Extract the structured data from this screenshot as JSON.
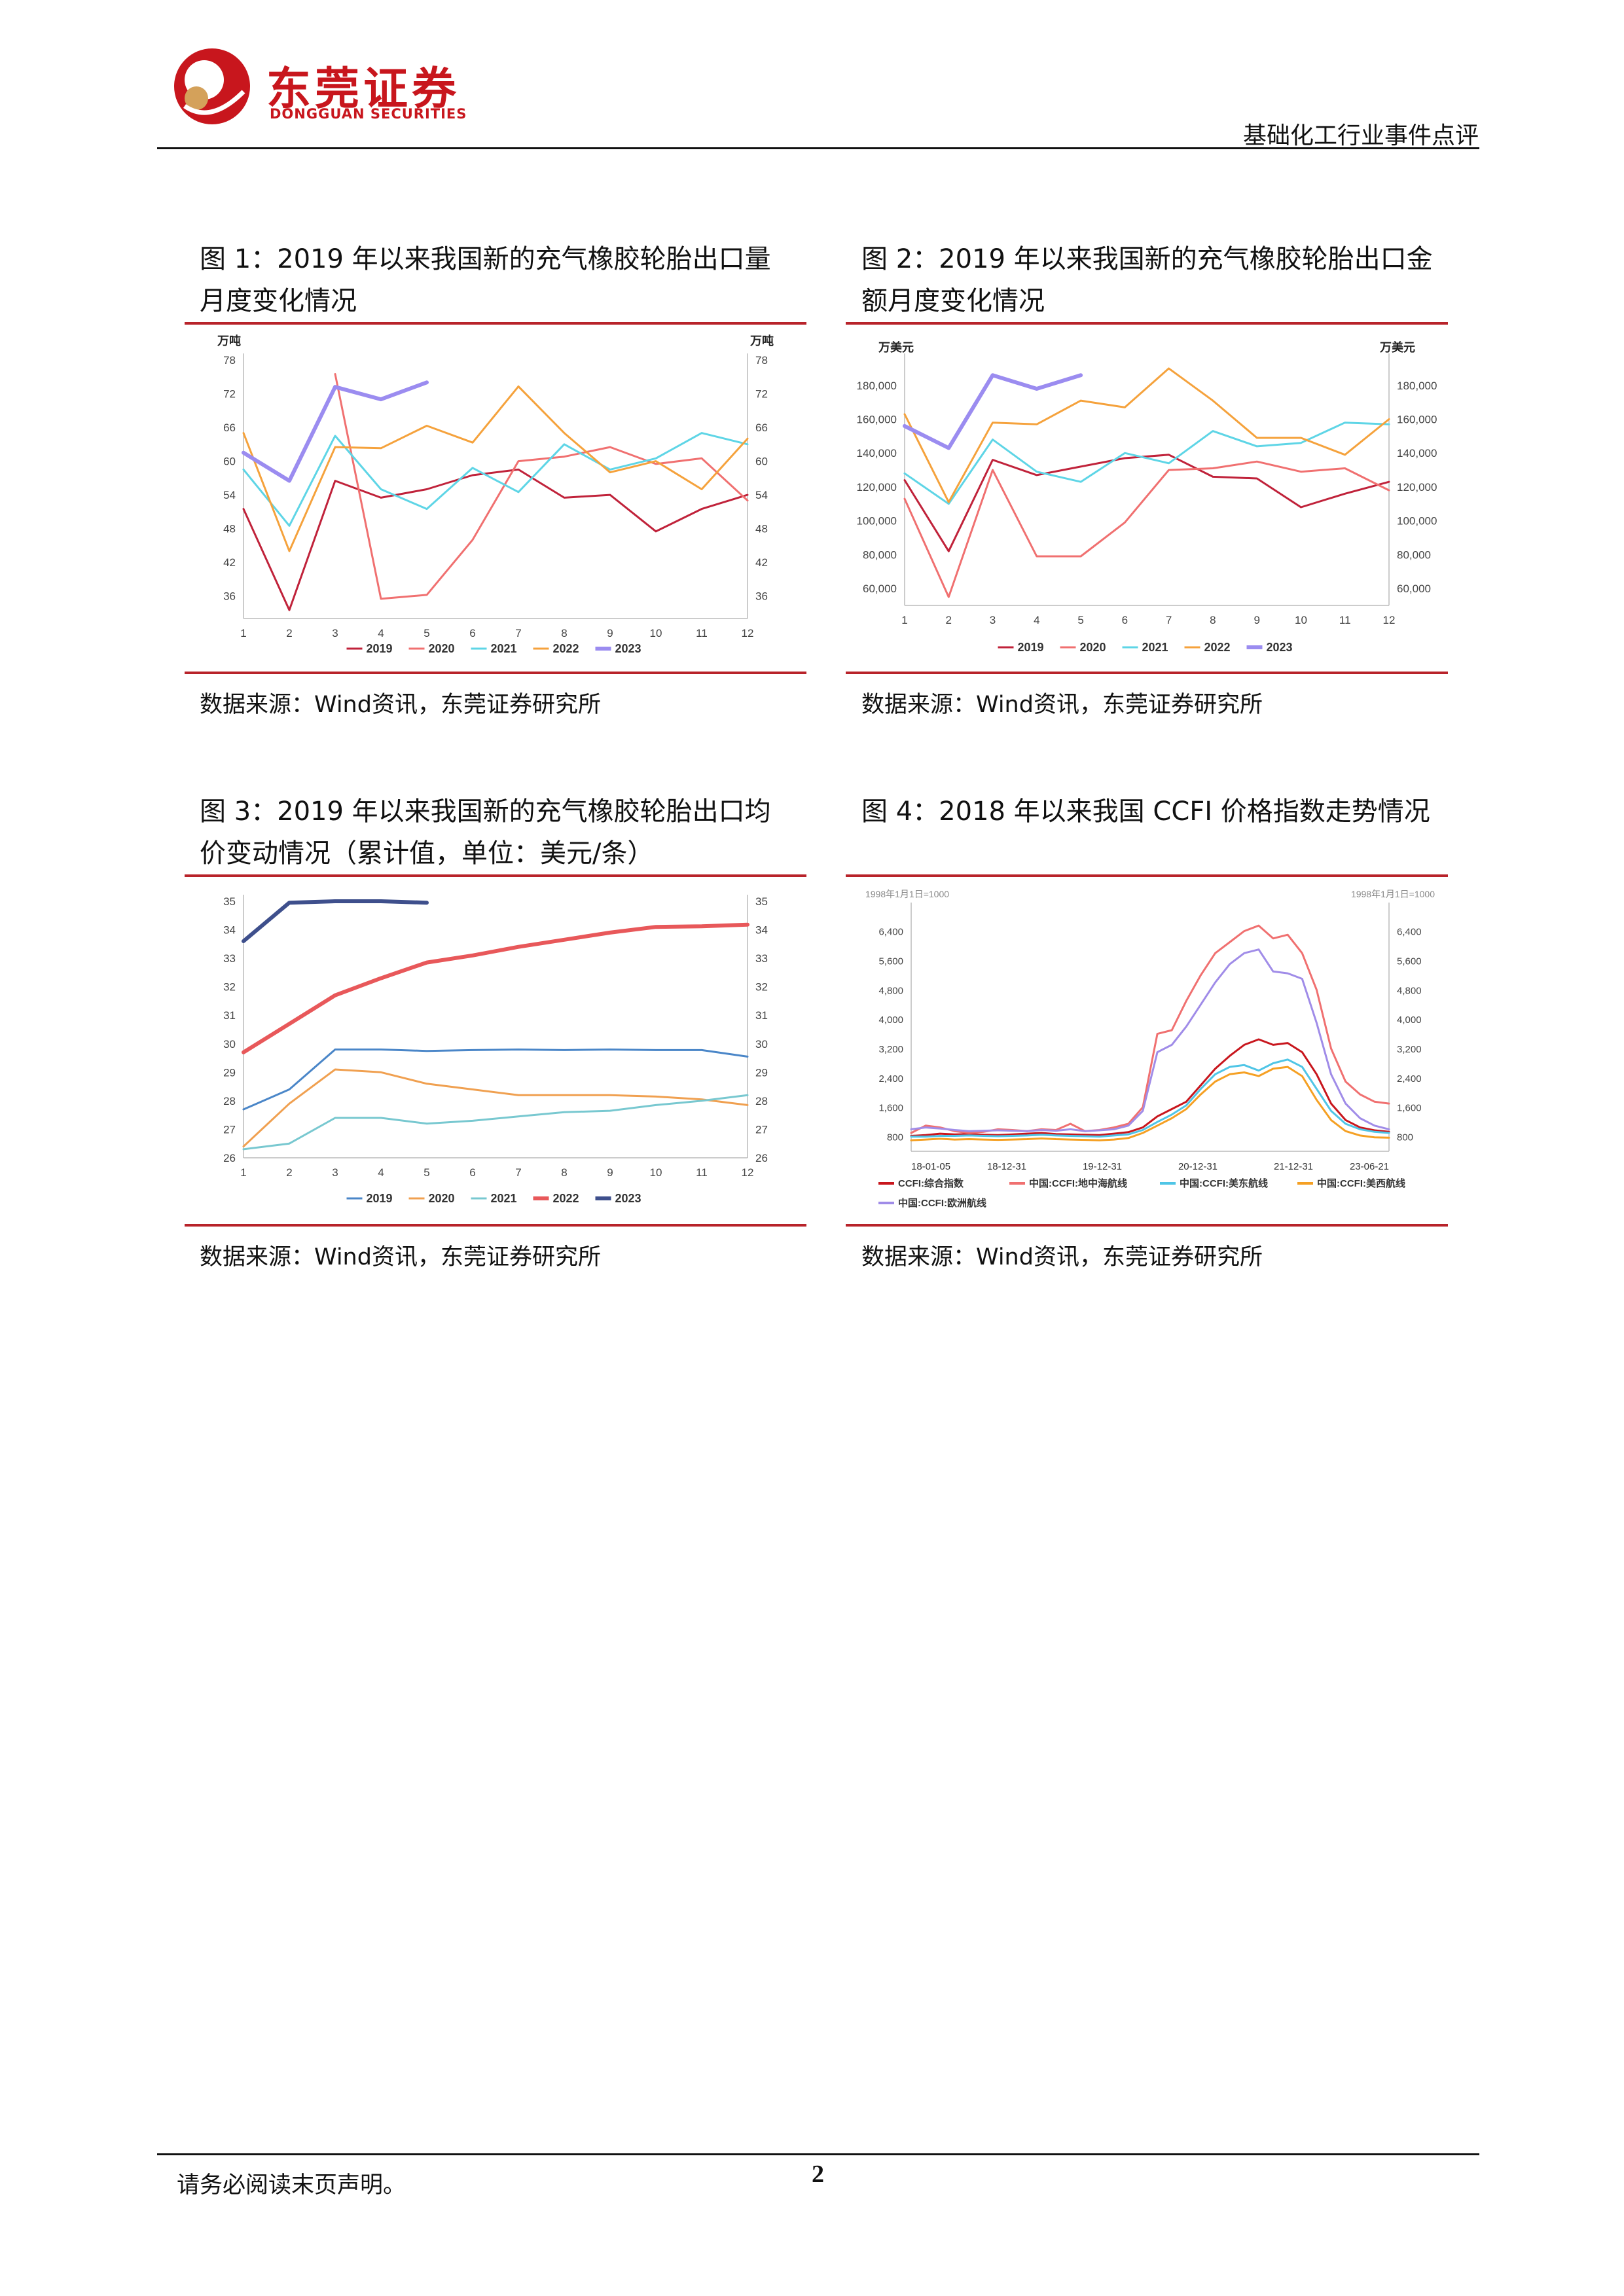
{
  "header": {
    "logo_cn": "东莞证券",
    "logo_en": "DONGGUAN SECURITIES",
    "report_type": "基础化工行业事件点评"
  },
  "figures": [
    {
      "caption": "图 1：2019 年以来我国新的充气橡胶轮胎出口量月度变化情况",
      "source": "数据来源：Wind资讯，东莞证券研究所"
    },
    {
      "caption": "图 2：2019 年以来我国新的充气橡胶轮胎出口金额月度变化情况",
      "source": "数据来源：Wind资讯，东莞证券研究所"
    },
    {
      "caption": "图 3：2019 年以来我国新的充气橡胶轮胎出口均价变动情况（累计值，单位：美元/条）",
      "source": "数据来源：Wind资讯，东莞证券研究所"
    },
    {
      "caption": "图 4：2018 年以来我国 CCFI 价格指数走势情况",
      "source": "数据来源：Wind资讯，东莞证券研究所"
    }
  ],
  "footer": {
    "note": "请务必阅读末页声明。",
    "page": "2"
  },
  "colors": {
    "brand_red": "#c8161d",
    "rule_red": "#b8232a"
  },
  "chart_data": [
    {
      "type": "line",
      "ylabel_left": "万吨",
      "ylabel_right": "万吨",
      "ylim": [
        32,
        78
      ],
      "yticks": [
        36,
        42,
        48,
        54,
        60,
        66,
        72,
        78
      ],
      "x": [
        1,
        2,
        3,
        4,
        5,
        6,
        7,
        8,
        9,
        10,
        11,
        12
      ],
      "legend": "bottom",
      "series": [
        {
          "name": "2019",
          "color": "#c0223a",
          "width": 3,
          "values": [
            51.5,
            33.5,
            56.5,
            53.5,
            55,
            57.5,
            58.5,
            53.5,
            54,
            47.5,
            51.5,
            54
          ]
        },
        {
          "name": "2020",
          "color": "#f07070",
          "width": 3,
          "values": [
            null,
            null,
            75.5,
            35.5,
            36.2,
            46,
            60,
            60.8,
            62.5,
            59.5,
            60.5,
            53
          ]
        },
        {
          "name": "2021",
          "color": "#5ed5e6",
          "width": 3,
          "values": [
            58.5,
            48.5,
            64.5,
            55,
            51.5,
            58.8,
            54.5,
            63,
            58.5,
            60.5,
            65,
            63
          ]
        },
        {
          "name": "2022",
          "color": "#f5a23c",
          "width": 3,
          "values": [
            65,
            44,
            62.5,
            62.3,
            66.3,
            63.3,
            73.3,
            65,
            58,
            60,
            55,
            64
          ]
        },
        {
          "name": "2023",
          "color": "#9b8cf0",
          "width": 6,
          "values": [
            61.5,
            56.5,
            73.2,
            71,
            74,
            null,
            null,
            null,
            null,
            null,
            null,
            null
          ]
        }
      ]
    },
    {
      "type": "line",
      "ylabel_left": "万美元",
      "ylabel_right": "万美元",
      "ylim": [
        50000,
        195000
      ],
      "yticks": [
        60000,
        80000,
        100000,
        120000,
        140000,
        160000,
        180000
      ],
      "x": [
        1,
        2,
        3,
        4,
        5,
        6,
        7,
        8,
        9,
        10,
        11,
        12
      ],
      "legend": "bottom",
      "series": [
        {
          "name": "2019",
          "color": "#c0223a",
          "width": 3,
          "values": [
            124000,
            82000,
            136000,
            127000,
            132000,
            137000,
            139000,
            126000,
            125000,
            108000,
            116000,
            123000
          ]
        },
        {
          "name": "2020",
          "color": "#f07070",
          "width": 3,
          "values": [
            113000,
            55000,
            130000,
            79000,
            79000,
            99000,
            130000,
            131000,
            135000,
            129000,
            131000,
            118000
          ]
        },
        {
          "name": "2021",
          "color": "#5ed5e6",
          "width": 3,
          "values": [
            128000,
            110000,
            148000,
            129000,
            123000,
            140000,
            134000,
            153000,
            144000,
            146000,
            158000,
            157000
          ]
        },
        {
          "name": "2022",
          "color": "#f5a23c",
          "width": 3,
          "values": [
            163000,
            111000,
            158000,
            157000,
            171000,
            167000,
            190000,
            171000,
            149000,
            149000,
            139000,
            160000
          ]
        },
        {
          "name": "2023",
          "color": "#9b8cf0",
          "width": 6,
          "values": [
            156000,
            143000,
            186000,
            178000,
            186000,
            null,
            null,
            null,
            null,
            null,
            null,
            null
          ]
        }
      ]
    },
    {
      "type": "line",
      "ylim": [
        26,
        35
      ],
      "yticks": [
        26,
        27,
        28,
        29,
        30,
        31,
        32,
        33,
        34,
        35
      ],
      "x": [
        1,
        2,
        3,
        4,
        5,
        6,
        7,
        8,
        9,
        10,
        11,
        12
      ],
      "legend": "bottom",
      "series": [
        {
          "name": "2019",
          "color": "#4a86c8",
          "width": 3,
          "values": [
            27.7,
            28.4,
            29.8,
            29.8,
            29.75,
            29.78,
            29.8,
            29.78,
            29.8,
            29.78,
            29.78,
            29.55
          ]
        },
        {
          "name": "2020",
          "color": "#f0a050",
          "width": 3,
          "values": [
            26.4,
            27.9,
            29.1,
            29.0,
            28.6,
            28.4,
            28.2,
            28.2,
            28.2,
            28.15,
            28.05,
            27.85
          ]
        },
        {
          "name": "2021",
          "color": "#78c8d0",
          "width": 3,
          "values": [
            26.3,
            26.5,
            27.4,
            27.4,
            27.2,
            27.3,
            27.45,
            27.6,
            27.65,
            27.85,
            28.0,
            28.2
          ]
        },
        {
          "name": "2022",
          "color": "#e8585a",
          "width": 6,
          "values": [
            29.7,
            30.7,
            31.7,
            32.3,
            32.85,
            33.1,
            33.4,
            33.65,
            33.9,
            34.1,
            34.12,
            34.18
          ]
        },
        {
          "name": "2023",
          "color": "#3e4f8c",
          "width": 6,
          "values": [
            33.6,
            34.95,
            35.0,
            35.0,
            34.95,
            null,
            null,
            null,
            null,
            null,
            null,
            null
          ]
        }
      ]
    },
    {
      "type": "line",
      "ylabel_left": "1998年1月1日=1000",
      "ylabel_right": "1998年1月1日=1000",
      "ylim": [
        400,
        7000
      ],
      "yticks": [
        800,
        1600,
        2400,
        3200,
        4000,
        4800,
        5600,
        6400
      ],
      "xticks": [
        "18-01-05",
        "18-12-31",
        "19-12-31",
        "20-12-31",
        "21-12-31",
        "23-06-21"
      ],
      "legend": "bottom",
      "series": [
        {
          "name": "CCFI:综合指数",
          "color": "#c8161d",
          "width": 3,
          "values": [
            820,
            840,
            880,
            860,
            870,
            850,
            840,
            860,
            880,
            900,
            870,
            860,
            850,
            840,
            880,
            920,
            1050,
            1350,
            1550,
            1750,
            2200,
            2650,
            3000,
            3300,
            3450,
            3300,
            3350,
            3100,
            2500,
            1700,
            1250,
            1050,
            970,
            930
          ]
        },
        {
          "name": "中国:CCFI:地中海航线",
          "color": "#f07070",
          "width": 3,
          "values": [
            900,
            1100,
            1050,
            950,
            900,
            930,
            1000,
            980,
            950,
            1000,
            980,
            1150,
            950,
            980,
            1050,
            1150,
            1600,
            3600,
            3700,
            4500,
            5200,
            5800,
            6100,
            6400,
            6550,
            6200,
            6300,
            5800,
            4800,
            3200,
            2300,
            1950,
            1750,
            1700
          ]
        },
        {
          "name": "中国:CCFI:美东航线",
          "color": "#4fc5e6",
          "width": 3,
          "values": [
            800,
            800,
            820,
            820,
            830,
            820,
            810,
            820,
            830,
            850,
            830,
            820,
            810,
            800,
            830,
            860,
            980,
            1200,
            1400,
            1650,
            2100,
            2500,
            2700,
            2750,
            2600,
            2800,
            2900,
            2700,
            2100,
            1500,
            1150,
            1000,
            930,
            900
          ]
        },
        {
          "name": "中国:CCFI:美西航线",
          "color": "#f5a023",
          "width": 3,
          "values": [
            700,
            720,
            740,
            720,
            730,
            720,
            710,
            720,
            730,
            750,
            730,
            720,
            710,
            700,
            720,
            760,
            900,
            1100,
            1300,
            1550,
            1950,
            2300,
            2500,
            2550,
            2450,
            2650,
            2700,
            2450,
            1800,
            1250,
            950,
            830,
            780,
            770
          ]
        },
        {
          "name": "中国:CCFI:欧洲航线",
          "color": "#a08ce8",
          "width": 3,
          "values": [
            1000,
            1050,
            1020,
            980,
            950,
            960,
            970,
            960,
            950,
            980,
            960,
            1000,
            950,
            970,
            1000,
            1100,
            1500,
            3100,
            3300,
            3800,
            4400,
            5000,
            5500,
            5800,
            5900,
            5300,
            5250,
            5100,
            3900,
            2500,
            1700,
            1300,
            1100,
            1000
          ]
        }
      ]
    }
  ]
}
